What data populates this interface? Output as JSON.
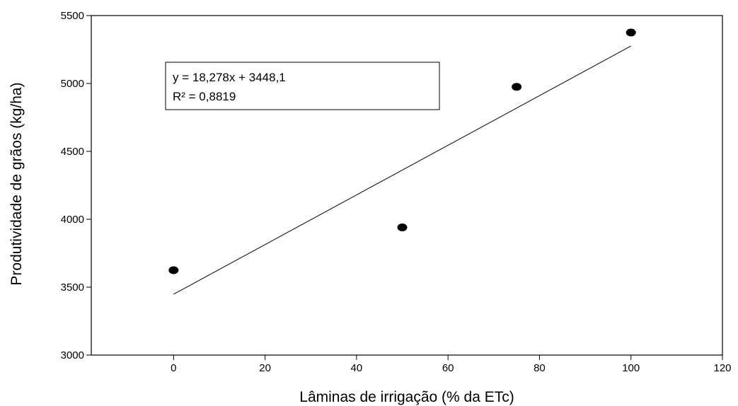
{
  "chart_data": {
    "type": "scatter",
    "xlabel": "Lâminas de irrigação (% da ETc)",
    "ylabel": "Produtividade de grãos (kg/ha)",
    "xlim": [
      -18,
      120
    ],
    "ylim": [
      3000,
      5500
    ],
    "xticks": [
      0,
      20,
      40,
      60,
      80,
      100,
      120
    ],
    "xtick_labels": [
      "0",
      "20",
      "40",
      "60",
      "80",
      "100",
      "120"
    ],
    "yticks": [
      3000,
      3500,
      4000,
      4500,
      5000,
      5500
    ],
    "ytick_labels": [
      "3000",
      "3500",
      "4000",
      "4500",
      "5000",
      "5500"
    ],
    "points": [
      {
        "x": 0,
        "y": 3625
      },
      {
        "x": 50,
        "y": 3940
      },
      {
        "x": 75,
        "y": 4975
      },
      {
        "x": 100,
        "y": 5375
      }
    ],
    "trendline": {
      "type": "linear",
      "slope": 18.278,
      "intercept": 3448.1,
      "x_range": [
        0,
        100
      ],
      "equation": "y = 18,278x + 3448,1",
      "r_squared": "R² = 0,8819"
    },
    "grid": false,
    "legend": "none"
  }
}
